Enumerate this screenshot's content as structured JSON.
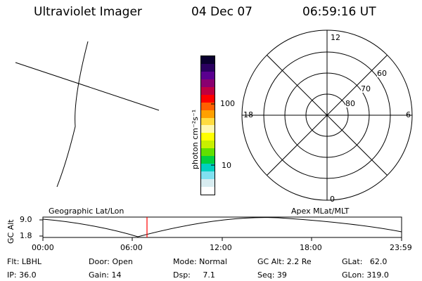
{
  "header": {
    "title": "Ultraviolet Imager",
    "date": "04 Dec 07",
    "time": "06:59:16 UT"
  },
  "colorbar": {
    "label": "photon cm⁻²s⁻¹",
    "ticks": [
      "100",
      "10"
    ],
    "colors": [
      "#0a0030",
      "#2a0060",
      "#5a0090",
      "#8a0070",
      "#c00040",
      "#ff0000",
      "#ff6000",
      "#ffa000",
      "#ffdc40",
      "#fff8b0",
      "#ffff00",
      "#c8f000",
      "#60e000",
      "#00d040",
      "#00d0c0",
      "#80e0f0",
      "#d8ecf0",
      "#ffffff"
    ]
  },
  "polar_plot": {
    "labels": {
      "top": "12",
      "left": "18",
      "right": "6",
      "bottom": "0"
    },
    "circle_labels": [
      "60",
      "70",
      "80"
    ]
  },
  "timeline": {
    "ylabel": "GC Alt",
    "y_ticks": [
      "9.0",
      "1.8"
    ],
    "left_title": "Geographic Lat/Lon",
    "right_title": "Apex MLat/MLT",
    "x_ticks": [
      "00:00",
      "06:00",
      "12:00",
      "18:00",
      "23:59"
    ],
    "marker_color": "#ff0000"
  },
  "info": {
    "flt": "Flt: LBHL",
    "ip": "IP: 36.0",
    "door": "Door: Open",
    "gain": "Gain: 14",
    "mode": "Mode: Normal",
    "dsp": "Dsp:     7.1",
    "gc_alt": "GC Alt: 2.2 Re",
    "seq": "Seq: 39",
    "glat": "GLat:   62.0",
    "glon": "GLon: 319.0"
  }
}
